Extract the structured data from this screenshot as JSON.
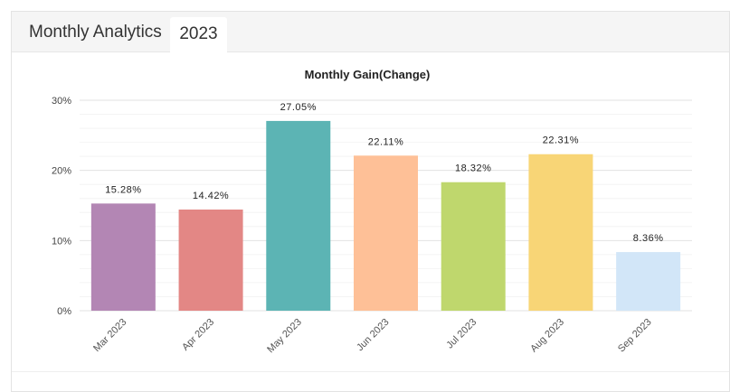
{
  "header": {
    "title": "Monthly Analytics",
    "tab": "2023"
  },
  "chart_data": {
    "type": "bar",
    "title": "Monthly Gain(Change)",
    "xlabel": "",
    "ylabel": "",
    "categories": [
      "Mar 2023",
      "Apr 2023",
      "May 2023",
      "Jun 2023",
      "Jul 2023",
      "Aug 2023",
      "Sep 2023"
    ],
    "values": [
      15.28,
      14.42,
      27.05,
      22.11,
      18.32,
      22.31,
      8.36
    ],
    "data_labels": [
      "15.28%",
      "14.42%",
      "27.05%",
      "22.11%",
      "18.32%",
      "22.31%",
      "8.36%"
    ],
    "colors": [
      "#b386b4",
      "#e38785",
      "#5cb4b4",
      "#fec097",
      "#bfd76d",
      "#f8d576",
      "#d2e6f8"
    ],
    "ylim": [
      0,
      30
    ],
    "yticks": [
      0,
      10,
      20,
      30
    ],
    "ytick_labels": [
      "0%",
      "10%",
      "20%",
      "30%"
    ],
    "grid": true,
    "legend": "none"
  }
}
